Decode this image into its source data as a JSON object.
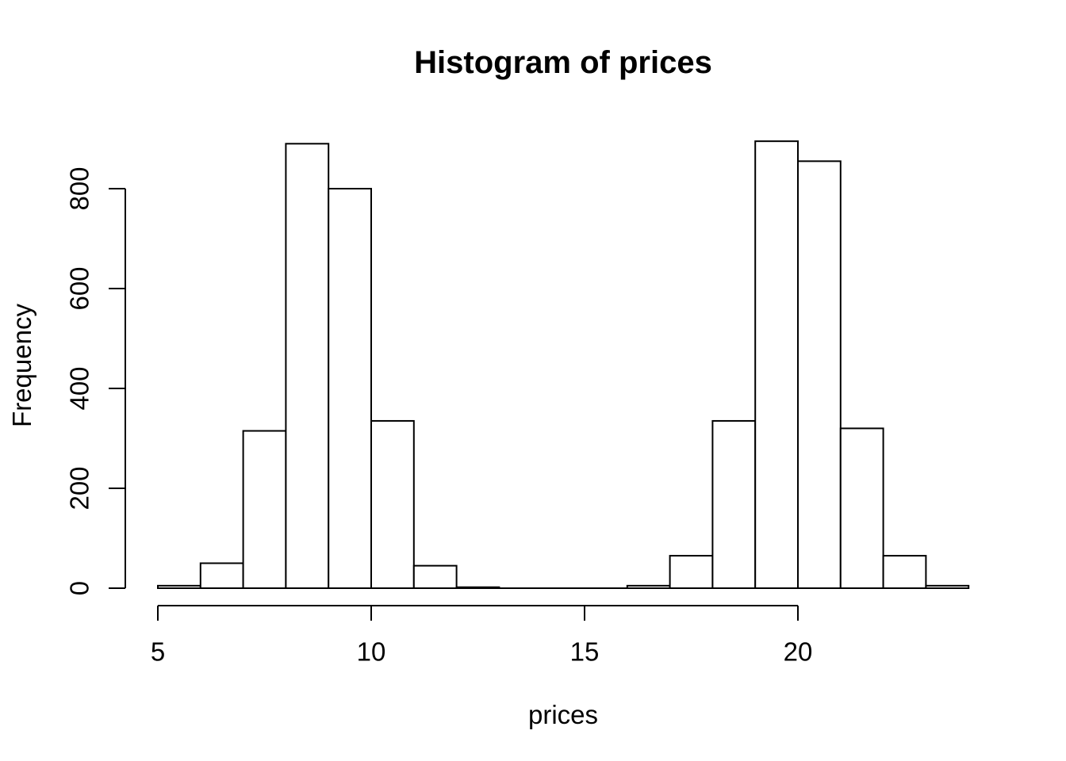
{
  "chart_data": {
    "type": "bar",
    "subtype": "histogram",
    "title": "Histogram of prices",
    "xlabel": "prices",
    "ylabel": "Frequency",
    "bin_breaks": [
      5,
      6,
      7,
      8,
      9,
      10,
      11,
      12,
      13,
      14,
      15,
      16,
      17,
      18,
      19,
      20,
      21,
      22,
      23,
      24
    ],
    "counts": [
      5,
      50,
      315,
      890,
      800,
      335,
      45,
      2,
      0,
      0,
      0,
      5,
      65,
      335,
      895,
      855,
      320,
      65,
      5
    ],
    "x_ticks": [
      5,
      10,
      15,
      20
    ],
    "y_ticks": [
      0,
      200,
      400,
      600,
      800
    ],
    "xlim": [
      5,
      24
    ],
    "ylim": [
      0,
      800
    ],
    "grid": false,
    "legend": false,
    "bar_fill": "#ffffff",
    "bar_stroke": "#000000",
    "axis_color": "#000000",
    "background": "#ffffff",
    "text_color": "#000000"
  }
}
